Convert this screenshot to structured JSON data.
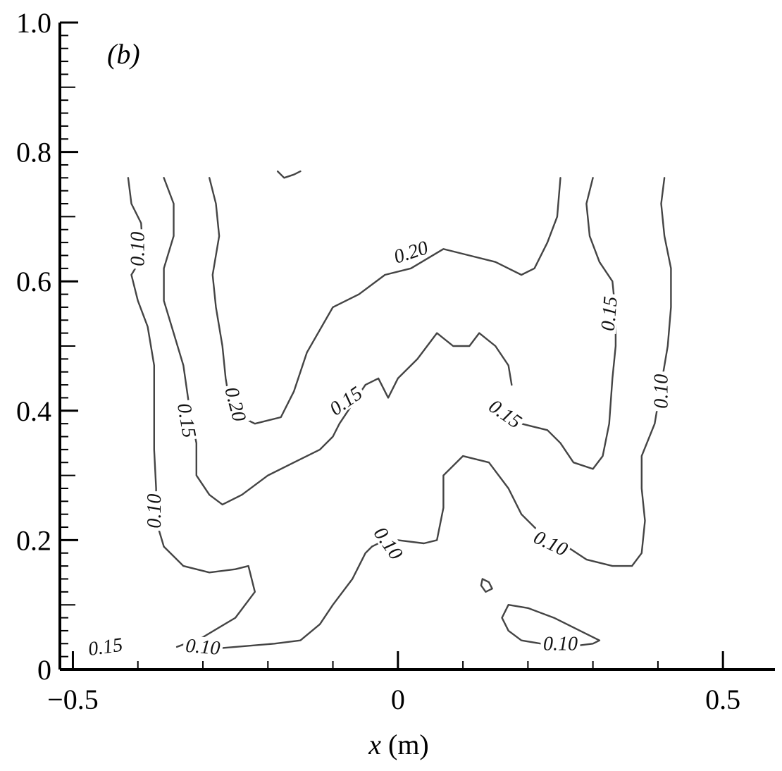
{
  "chart_data": {
    "type": "contour",
    "panel_label": "(b)",
    "xlabel": "x (m)",
    "xlabel_var": "x",
    "xlabel_unit": " (m)",
    "ylabel": "",
    "xlim": [
      -0.52,
      0.58
    ],
    "ylim": [
      0,
      1.0
    ],
    "x_ticks": [
      {
        "value": -0.5,
        "label": "−0.5"
      },
      {
        "value": 0,
        "label": "0"
      },
      {
        "value": 0.5,
        "label": "0.5"
      }
    ],
    "y_ticks": [
      {
        "value": 0,
        "label": "0"
      },
      {
        "value": 0.2,
        "label": "0.2"
      },
      {
        "value": 0.4,
        "label": "0.4"
      },
      {
        "value": 0.6,
        "label": "0.6"
      },
      {
        "value": 0.8,
        "label": "0.8"
      },
      {
        "value": 1.0,
        "label": "1.0"
      }
    ],
    "contours": [
      {
        "level": 0.1,
        "points": [
          [
            -0.415,
            0.76
          ],
          [
            -0.41,
            0.72
          ],
          [
            -0.395,
            0.69
          ],
          [
            -0.392,
            0.64
          ],
          [
            -0.41,
            0.61
          ],
          [
            -0.4,
            0.57
          ],
          [
            -0.385,
            0.53
          ],
          [
            -0.375,
            0.47
          ],
          [
            -0.375,
            0.4
          ],
          [
            -0.375,
            0.34
          ],
          [
            -0.372,
            0.28
          ],
          [
            -0.372,
            0.23
          ],
          [
            -0.36,
            0.19
          ],
          [
            -0.33,
            0.16
          ],
          [
            -0.29,
            0.15
          ],
          [
            -0.25,
            0.155
          ],
          [
            -0.23,
            0.16
          ],
          [
            -0.22,
            0.12
          ],
          [
            -0.25,
            0.08
          ],
          [
            -0.3,
            0.05
          ],
          [
            -0.34,
            0.035
          ]
        ]
      },
      {
        "level": 0.15,
        "points": [
          [
            -0.36,
            0.76
          ],
          [
            -0.345,
            0.72
          ],
          [
            -0.345,
            0.67
          ],
          [
            -0.36,
            0.62
          ],
          [
            -0.36,
            0.57
          ],
          [
            -0.345,
            0.52
          ],
          [
            -0.33,
            0.47
          ],
          [
            -0.32,
            0.4
          ],
          [
            -0.31,
            0.35
          ],
          [
            -0.31,
            0.3
          ],
          [
            -0.29,
            0.27
          ],
          [
            -0.27,
            0.255
          ],
          [
            -0.24,
            0.27
          ],
          [
            -0.2,
            0.3
          ],
          [
            -0.16,
            0.32
          ],
          [
            -0.12,
            0.34
          ],
          [
            -0.1,
            0.36
          ],
          [
            -0.09,
            0.38
          ],
          [
            -0.07,
            0.41
          ],
          [
            -0.05,
            0.44
          ],
          [
            -0.03,
            0.45
          ],
          [
            -0.015,
            0.42
          ],
          [
            0.0,
            0.45
          ],
          [
            0.03,
            0.48
          ],
          [
            0.06,
            0.52
          ],
          [
            0.085,
            0.5
          ],
          [
            0.11,
            0.5
          ],
          [
            0.125,
            0.52
          ],
          [
            0.15,
            0.5
          ],
          [
            0.17,
            0.47
          ],
          [
            0.175,
            0.44
          ]
        ]
      },
      {
        "level": 0.2,
        "points": [
          [
            -0.29,
            0.76
          ],
          [
            -0.28,
            0.72
          ],
          [
            -0.275,
            0.67
          ],
          [
            -0.285,
            0.61
          ],
          [
            -0.28,
            0.56
          ],
          [
            -0.27,
            0.5
          ],
          [
            -0.265,
            0.45
          ],
          [
            -0.26,
            0.42
          ],
          [
            -0.24,
            0.39
          ],
          [
            -0.22,
            0.38
          ],
          [
            -0.18,
            0.39
          ],
          [
            -0.16,
            0.43
          ],
          [
            -0.14,
            0.49
          ],
          [
            -0.1,
            0.56
          ],
          [
            -0.06,
            0.58
          ],
          [
            -0.02,
            0.61
          ],
          [
            0.02,
            0.62
          ],
          [
            0.07,
            0.65
          ],
          [
            0.11,
            0.64
          ],
          [
            0.15,
            0.63
          ],
          [
            0.19,
            0.61
          ],
          [
            0.21,
            0.62
          ],
          [
            0.23,
            0.66
          ],
          [
            0.245,
            0.7
          ],
          [
            0.25,
            0.76
          ]
        ]
      },
      {
        "level": 0.15,
        "points": [
          [
            0.3,
            0.76
          ],
          [
            0.29,
            0.72
          ],
          [
            0.295,
            0.67
          ],
          [
            0.31,
            0.63
          ],
          [
            0.33,
            0.6
          ],
          [
            0.335,
            0.55
          ],
          [
            0.335,
            0.5
          ],
          [
            0.33,
            0.45
          ],
          [
            0.325,
            0.38
          ],
          [
            0.315,
            0.33
          ],
          [
            0.3,
            0.31
          ],
          [
            0.27,
            0.32
          ],
          [
            0.25,
            0.35
          ],
          [
            0.23,
            0.37
          ],
          [
            0.21,
            0.375
          ],
          [
            0.19,
            0.38
          ]
        ]
      },
      {
        "level": 0.1,
        "points": [
          [
            0.41,
            0.76
          ],
          [
            0.405,
            0.72
          ],
          [
            0.41,
            0.67
          ],
          [
            0.42,
            0.62
          ],
          [
            0.42,
            0.56
          ],
          [
            0.415,
            0.5
          ],
          [
            0.405,
            0.44
          ],
          [
            0.395,
            0.38
          ],
          [
            0.375,
            0.33
          ],
          [
            0.375,
            0.28
          ],
          [
            0.38,
            0.23
          ],
          [
            0.375,
            0.18
          ],
          [
            0.36,
            0.16
          ],
          [
            0.33,
            0.16
          ],
          [
            0.29,
            0.17
          ],
          [
            0.26,
            0.19
          ],
          [
            0.22,
            0.21
          ],
          [
            0.19,
            0.24
          ],
          [
            0.17,
            0.28
          ],
          [
            0.14,
            0.32
          ],
          [
            0.1,
            0.33
          ],
          [
            0.07,
            0.3
          ],
          [
            0.07,
            0.25
          ],
          [
            0.06,
            0.2
          ],
          [
            0.04,
            0.195
          ],
          [
            0.0,
            0.2
          ],
          [
            -0.02,
            0.2
          ],
          [
            -0.04,
            0.19
          ]
        ]
      },
      {
        "level": 0.1,
        "points": [
          [
            -0.31,
            0.03
          ],
          [
            -0.25,
            0.035
          ],
          [
            -0.19,
            0.04
          ],
          [
            -0.15,
            0.045
          ],
          [
            -0.12,
            0.07
          ],
          [
            -0.1,
            0.1
          ],
          [
            -0.07,
            0.14
          ],
          [
            -0.06,
            0.16
          ],
          [
            -0.05,
            0.18
          ],
          [
            -0.04,
            0.19
          ]
        ]
      },
      {
        "level": 0.1,
        "points": [
          [
            0.17,
            0.1
          ],
          [
            0.2,
            0.095
          ],
          [
            0.24,
            0.08
          ],
          [
            0.28,
            0.06
          ],
          [
            0.31,
            0.045
          ],
          [
            0.3,
            0.04
          ],
          [
            0.26,
            0.035
          ],
          [
            0.22,
            0.04
          ],
          [
            0.19,
            0.045
          ],
          [
            0.17,
            0.06
          ],
          [
            0.16,
            0.08
          ],
          [
            0.17,
            0.1
          ]
        ]
      },
      {
        "level": 0.2,
        "points": [
          [
            -0.185,
            0.77
          ],
          [
            -0.175,
            0.76
          ],
          [
            -0.16,
            0.765
          ],
          [
            -0.15,
            0.77
          ]
        ]
      },
      {
        "level": 0.1,
        "points": [
          [
            0.13,
            0.14
          ],
          [
            0.14,
            0.135
          ],
          [
            0.145,
            0.125
          ],
          [
            0.135,
            0.12
          ],
          [
            0.128,
            0.13
          ],
          [
            0.13,
            0.14
          ]
        ]
      }
    ],
    "contour_labels": [
      {
        "text": "0.10",
        "x": -0.4,
        "y": 0.65,
        "rotate": -90
      },
      {
        "text": "0.15",
        "x": -0.325,
        "y": 0.385,
        "rotate": 80
      },
      {
        "text": "0.20",
        "x": -0.25,
        "y": 0.41,
        "rotate": 75
      },
      {
        "text": "0.10",
        "x": -0.375,
        "y": 0.245,
        "rotate": -90
      },
      {
        "text": "0.15",
        "x": -0.45,
        "y": 0.035,
        "rotate": -8
      },
      {
        "text": "0.10",
        "x": -0.3,
        "y": 0.035,
        "rotate": 5
      },
      {
        "text": "0.20",
        "x": 0.02,
        "y": 0.645,
        "rotate": -18
      },
      {
        "text": "0.15",
        "x": -0.08,
        "y": 0.415,
        "rotate": -35
      },
      {
        "text": "0.15",
        "x": 0.165,
        "y": 0.395,
        "rotate": 35
      },
      {
        "text": "0.10",
        "x": -0.015,
        "y": 0.195,
        "rotate": 55
      },
      {
        "text": "0.15",
        "x": 0.325,
        "y": 0.55,
        "rotate": -85
      },
      {
        "text": "0.10",
        "x": 0.405,
        "y": 0.43,
        "rotate": -90
      },
      {
        "text": "0.10",
        "x": 0.235,
        "y": 0.195,
        "rotate": 25
      },
      {
        "text": "0.10",
        "x": 0.25,
        "y": 0.04,
        "rotate": 0
      }
    ]
  }
}
